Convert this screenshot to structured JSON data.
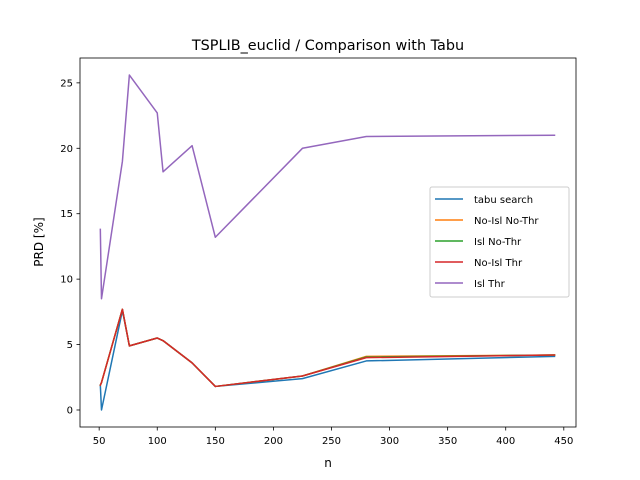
{
  "chart_data": {
    "type": "line",
    "title": "TSPLIB_euclid / Comparison with Tabu",
    "xlabel": "n",
    "ylabel": "PRD [%]",
    "xlim": [
      33.5,
      460.5
    ],
    "ylim": [
      -1.3,
      26.9
    ],
    "xticks": [
      50,
      100,
      150,
      200,
      250,
      300,
      350,
      400,
      450
    ],
    "yticks": [
      0,
      5,
      10,
      15,
      20,
      25
    ],
    "grid": false,
    "legend_position": "center-right",
    "x": [
      51,
      52,
      70,
      76,
      100,
      105,
      130,
      150,
      225,
      280,
      442
    ],
    "series": [
      {
        "name": "tabu search",
        "color": "#1f77b4",
        "values": [
          1.9,
          0.0,
          7.6,
          4.9,
          5.5,
          5.3,
          3.6,
          1.8,
          2.4,
          3.75,
          4.1
        ]
      },
      {
        "name": "No-Isl No-Thr",
        "color": "#ff7f0e",
        "values": [
          1.9,
          2.1,
          7.7,
          4.9,
          5.5,
          5.3,
          3.6,
          1.8,
          2.6,
          4.1,
          4.2
        ]
      },
      {
        "name": "Isl No-Thr",
        "color": "#2ca02c",
        "values": [
          1.9,
          2.1,
          7.7,
          4.9,
          5.5,
          5.3,
          3.6,
          1.8,
          2.6,
          4.05,
          4.2
        ]
      },
      {
        "name": "No-Isl Thr",
        "color": "#d62728",
        "values": [
          1.9,
          2.1,
          7.7,
          4.9,
          5.5,
          5.3,
          3.6,
          1.8,
          2.6,
          4.0,
          4.2
        ]
      },
      {
        "name": "Isl Thr",
        "color": "#9467bd",
        "values": [
          13.8,
          8.5,
          19.0,
          25.6,
          22.7,
          18.2,
          20.2,
          13.2,
          20.0,
          20.9,
          21.0
        ]
      }
    ]
  }
}
